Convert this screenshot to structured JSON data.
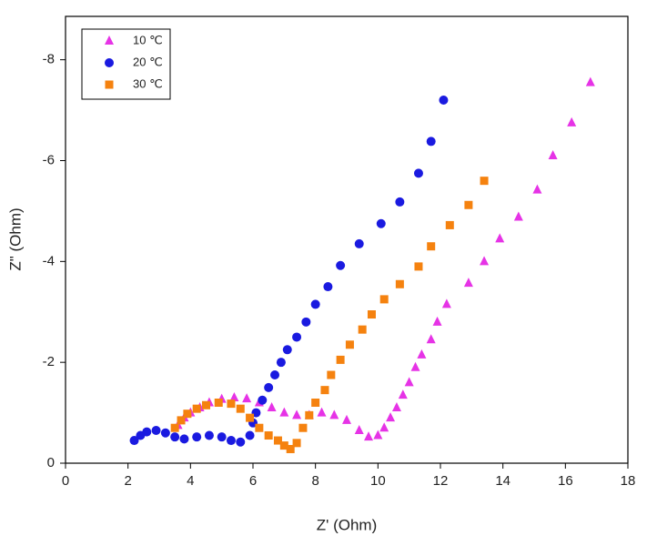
{
  "chart_data": {
    "type": "scatter",
    "x_label": "Z' (Ohm)",
    "y_label": "Z\" (Ohm)",
    "xlim": [
      0,
      18
    ],
    "xticks": [
      0,
      2,
      4,
      6,
      8,
      10,
      12,
      14,
      16,
      18
    ],
    "ylim": [
      0,
      -8.86
    ],
    "yticks": [
      0,
      -2,
      -4,
      -6,
      -8
    ],
    "legend": "top-left",
    "series": [
      {
        "name": "10 ℃",
        "color": "#e633e6",
        "marker": "triangle",
        "x": [
          3.6,
          3.8,
          4.0,
          4.3,
          4.6,
          5.0,
          5.4,
          5.8,
          6.2,
          6.6,
          7.0,
          7.4,
          7.8,
          8.2,
          8.6,
          9.0,
          9.4,
          9.7,
          10.0,
          10.2,
          10.4,
          10.6,
          10.8,
          11.0,
          11.2,
          11.4,
          11.7,
          11.9,
          12.2,
          12.9,
          13.4,
          13.9,
          14.5,
          15.1,
          15.6,
          16.2,
          16.8
        ],
        "values": [
          -0.75,
          -0.9,
          -1.0,
          -1.1,
          -1.2,
          -1.27,
          -1.3,
          -1.28,
          -1.2,
          -1.1,
          -1.0,
          -0.95,
          -0.95,
          -1.0,
          -0.95,
          -0.85,
          -0.65,
          -0.52,
          -0.55,
          -0.7,
          -0.9,
          -1.1,
          -1.35,
          -1.6,
          -1.9,
          -2.15,
          -2.45,
          -2.8,
          -3.15,
          -3.57,
          -4.0,
          -4.45,
          -4.88,
          -5.42,
          -6.1,
          -6.75,
          -7.55
        ]
      },
      {
        "name": "20 ℃",
        "color": "#1a1ae0",
        "marker": "circle",
        "x": [
          2.2,
          2.4,
          2.6,
          2.9,
          3.2,
          3.5,
          3.8,
          4.2,
          4.6,
          5.0,
          5.3,
          5.6,
          5.9,
          6.0,
          6.1,
          6.3,
          6.5,
          6.7,
          6.9,
          7.1,
          7.4,
          7.7,
          8.0,
          8.4,
          8.8,
          9.4,
          10.1,
          10.7,
          11.3,
          11.7,
          12.1
        ],
        "values": [
          -0.45,
          -0.55,
          -0.62,
          -0.65,
          -0.6,
          -0.52,
          -0.48,
          -0.52,
          -0.55,
          -0.52,
          -0.45,
          -0.42,
          -0.55,
          -0.8,
          -1.0,
          -1.25,
          -1.5,
          -1.75,
          -2.0,
          -2.25,
          -2.5,
          -2.8,
          -3.15,
          -3.5,
          -3.92,
          -4.35,
          -4.75,
          -5.18,
          -5.75,
          -6.38,
          -7.2
        ]
      },
      {
        "name": "30 ℃",
        "color": "#f5820f",
        "marker": "square",
        "x": [
          3.5,
          3.7,
          3.9,
          4.2,
          4.5,
          4.9,
          5.3,
          5.6,
          5.9,
          6.2,
          6.5,
          6.8,
          7.0,
          7.2,
          7.4,
          7.6,
          7.8,
          8.0,
          8.3,
          8.5,
          8.8,
          9.1,
          9.5,
          9.8,
          10.2,
          10.7,
          11.3,
          11.7,
          12.3,
          12.9,
          13.4
        ],
        "values": [
          -0.7,
          -0.85,
          -0.98,
          -1.08,
          -1.15,
          -1.2,
          -1.18,
          -1.08,
          -0.9,
          -0.7,
          -0.55,
          -0.45,
          -0.35,
          -0.28,
          -0.4,
          -0.7,
          -0.95,
          -1.2,
          -1.45,
          -1.75,
          -2.05,
          -2.35,
          -2.65,
          -2.95,
          -3.25,
          -3.55,
          -3.9,
          -4.3,
          -4.72,
          -5.12,
          -5.6
        ]
      }
    ]
  }
}
